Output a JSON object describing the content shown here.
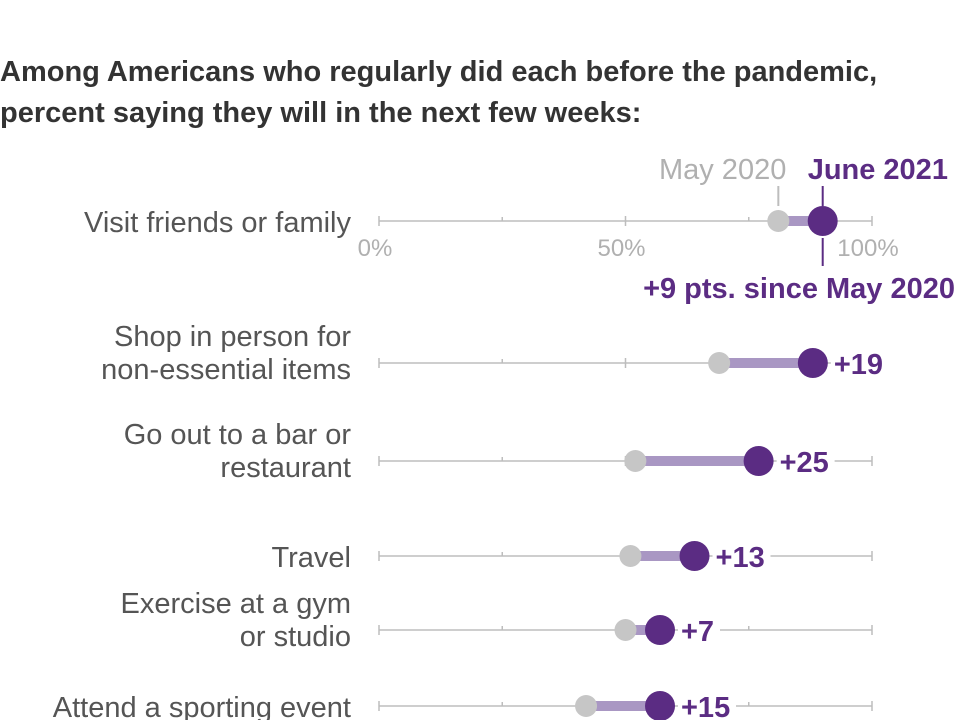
{
  "title_lines": [
    "Among Americans who regularly did each before the pandemic,",
    "percent saying they will in the next few weeks:"
  ],
  "legend": {
    "may_label": "May 2020",
    "june_label": "June 2021",
    "first_delta_note": "+9 pts. since May 2020"
  },
  "colors": {
    "may": "#c6c6c6",
    "june": "#5b2c83",
    "connector": "#a997c3",
    "axis": "#bdbdbd"
  },
  "chart_data": {
    "type": "dot-plot",
    "title": "Among Americans who regularly did each before the pandemic, percent saying they will in the next few weeks:",
    "xlim": [
      0,
      100
    ],
    "x_ticks": [
      "0%",
      "50%",
      "100%"
    ],
    "series": [
      {
        "name": "May 2020",
        "values": [
          81,
          69,
          52,
          51,
          50,
          42
        ]
      },
      {
        "name": "June 2021",
        "values": [
          90,
          88,
          77,
          64,
          57,
          57
        ]
      }
    ],
    "categories": [
      {
        "label_lines": [
          "Visit friends or family"
        ],
        "may": 81,
        "june": 90,
        "delta": "+9 pts. since May 2020"
      },
      {
        "label_lines": [
          "Shop in person for",
          "non-essential items"
        ],
        "may": 69,
        "june": 88,
        "delta": "+19"
      },
      {
        "label_lines": [
          "Go out to a bar or",
          "restaurant"
        ],
        "may": 52,
        "june": 77,
        "delta": "+25"
      },
      {
        "label_lines": [
          "Travel"
        ],
        "may": 51,
        "june": 64,
        "delta": "+13"
      },
      {
        "label_lines": [
          "Exercise at a gym",
          "or studio"
        ],
        "may": 50,
        "june": 57,
        "delta": "+7"
      },
      {
        "label_lines": [
          "Attend a sporting event"
        ],
        "may": 42,
        "june": 57,
        "delta": "+15"
      }
    ]
  }
}
